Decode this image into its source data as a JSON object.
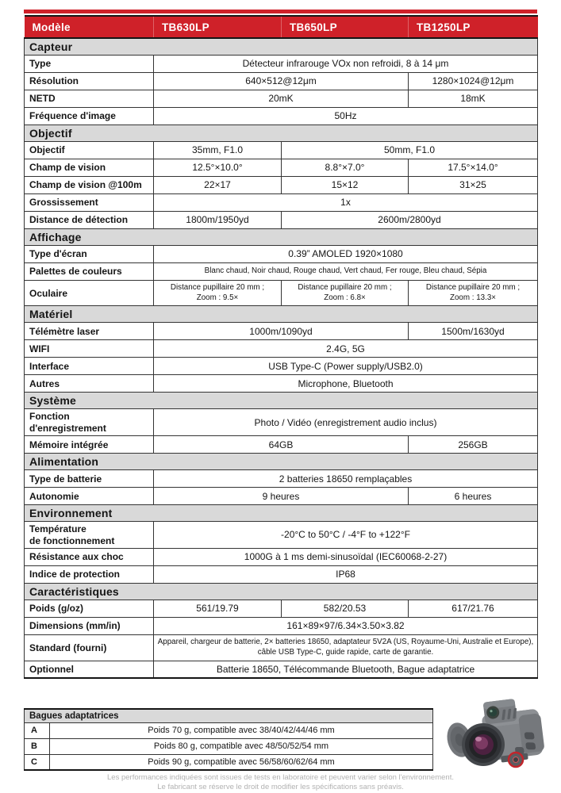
{
  "page": {
    "accent_color": "#cf2129",
    "section_bg": "#d9d9d9"
  },
  "header": {
    "label": "Modèle",
    "models": [
      "TB630LP",
      "TB650LP",
      "TB1250LP"
    ]
  },
  "sections": [
    {
      "title": "Capteur",
      "rows": [
        {
          "label": "Type",
          "cells": [
            {
              "text": "Détecteur infrarouge VOx non refroidi, 8 à 14 μm",
              "span": 3
            }
          ]
        },
        {
          "label": "Résolution",
          "cells": [
            {
              "text": "640×512@12μm",
              "span": 2
            },
            {
              "text": "1280×1024@12μm",
              "span": 1
            }
          ]
        },
        {
          "label": "NETD",
          "cells": [
            {
              "text": "20mK",
              "span": 2
            },
            {
              "text": "18mK",
              "span": 1
            }
          ]
        },
        {
          "label": "Fréquence d'image",
          "cells": [
            {
              "text": "50Hz",
              "span": 3
            }
          ]
        }
      ]
    },
    {
      "title": "Objectif",
      "rows": [
        {
          "label": "Objectif",
          "cells": [
            {
              "text": "35mm, F1.0",
              "span": 1
            },
            {
              "text": "50mm, F1.0",
              "span": 2
            }
          ]
        },
        {
          "label": "Champ de vision",
          "cells": [
            {
              "text": "12.5°×10.0°",
              "span": 1
            },
            {
              "text": "8.8°×7.0°",
              "span": 1
            },
            {
              "text": "17.5°×14.0°",
              "span": 1
            }
          ]
        },
        {
          "label": "Champ de vision @100m",
          "cells": [
            {
              "text": "22×17",
              "span": 1
            },
            {
              "text": "15×12",
              "span": 1
            },
            {
              "text": "31×25",
              "span": 1
            }
          ]
        },
        {
          "label": "Grossissement",
          "cells": [
            {
              "text": "1x",
              "span": 3
            }
          ]
        },
        {
          "label": "Distance de détection",
          "cells": [
            {
              "text": "1800m/1950yd",
              "span": 1
            },
            {
              "text": "2600m/2800yd",
              "span": 2
            }
          ]
        }
      ]
    },
    {
      "title": "Affichage",
      "rows": [
        {
          "label": "Type d'écran",
          "cells": [
            {
              "text": "0.39” AMOLED 1920×1080",
              "span": 3
            }
          ]
        },
        {
          "label": "Palettes de couleurs",
          "cells": [
            {
              "text": "Blanc chaud, Noir chaud, Rouge chaud, Vert chaud, Fer rouge, Bleu chaud, Sépia",
              "span": 3,
              "small": true
            }
          ]
        },
        {
          "label": "Oculaire",
          "cells": [
            {
              "text": "Distance pupillaire 20 mm ;\nZoom : 9.5×",
              "span": 1,
              "small": true
            },
            {
              "text": "Distance pupillaire 20 mm ;\nZoom : 6.8×",
              "span": 1,
              "small": true
            },
            {
              "text": "Distance pupillaire 20 mm ;\nZoom : 13.3×",
              "span": 1,
              "small": true
            }
          ]
        }
      ]
    },
    {
      "title": "Matériel",
      "rows": [
        {
          "label": "Télémètre laser",
          "cells": [
            {
              "text": "1000m/1090yd",
              "span": 2
            },
            {
              "text": "1500m/1630yd",
              "span": 1
            }
          ]
        },
        {
          "label": "WIFI",
          "cells": [
            {
              "text": "2.4G, 5G",
              "span": 3
            }
          ]
        },
        {
          "label": "Interface",
          "cells": [
            {
              "text": "USB Type-C (Power supply/USB2.0)",
              "span": 3
            }
          ]
        },
        {
          "label": "Autres",
          "cells": [
            {
              "text": "Microphone, Bluetooth",
              "span": 3
            }
          ]
        }
      ]
    },
    {
      "title": "Système",
      "rows": [
        {
          "label": "Fonction\nd'enregistrement",
          "cells": [
            {
              "text": "Photo / Vidéo (enregistrement audio inclus)",
              "span": 3
            }
          ]
        },
        {
          "label": "Mémoire intégrée",
          "cells": [
            {
              "text": "64GB",
              "span": 2
            },
            {
              "text": "256GB",
              "span": 1
            }
          ]
        }
      ]
    },
    {
      "title": "Alimentation",
      "rows": [
        {
          "label": "Type de batterie",
          "cells": [
            {
              "text": "2 batteries 18650 remplaçables",
              "span": 3
            }
          ]
        },
        {
          "label": "Autonomie",
          "cells": [
            {
              "text": "9 heures",
              "span": 2
            },
            {
              "text": "6 heures",
              "span": 1
            }
          ]
        }
      ]
    },
    {
      "title": "Environnement",
      "rows": [
        {
          "label": "Température\nde fonctionnement",
          "cells": [
            {
              "text": "-20°C to 50°C / -4°F to +122°F",
              "span": 3
            }
          ]
        },
        {
          "label": "Résistance aux choc",
          "cells": [
            {
              "text": "1000G à 1 ms demi-sinusoïdal (IEC60068-2-27)",
              "span": 3
            }
          ]
        },
        {
          "label": "Indice de protection",
          "cells": [
            {
              "text": "IP68",
              "span": 3
            }
          ]
        }
      ]
    },
    {
      "title": "Caractéristiques",
      "rows": [
        {
          "label": "Poids (g/oz)",
          "cells": [
            {
              "text": "561/19.79",
              "span": 1
            },
            {
              "text": "582/20.53",
              "span": 1
            },
            {
              "text": "617/21.76",
              "span": 1
            }
          ]
        },
        {
          "label": "Dimensions (mm/in)",
          "cells": [
            {
              "text": "161×89×97/6.34×3.50×3.82",
              "span": 3
            }
          ]
        },
        {
          "label": "Standard (fourni)",
          "cells": [
            {
              "text": "Appareil, chargeur de batterie, 2× batteries 18650, adaptateur 5V2A (US, Royaume-Uni, Australie et Europe), câble USB Type-C, guide rapide, carte de garantie.",
              "span": 3,
              "small": true
            }
          ]
        },
        {
          "label": "Optionnel",
          "cells": [
            {
              "text": "Batterie 18650, Télécommande Bluetooth, Bague adaptatrice",
              "span": 3
            }
          ]
        }
      ]
    }
  ],
  "adapter_rings": {
    "title": "Bagues adaptatrices",
    "rows": [
      {
        "key": "A",
        "text": "Poids 70 g, compatible avec 38/40/42/44/46 mm"
      },
      {
        "key": "B",
        "text": "Poids 80 g, compatible avec 48/50/52/54 mm"
      },
      {
        "key": "C",
        "text": "Poids 90 g, compatible avec 56/58/60/62/64 mm"
      }
    ]
  },
  "device": {
    "description": "thermal clip-on monocular with open lens cap"
  },
  "footer": {
    "line1": "Les performances indiquées sont issues de tests en laboratoire et peuvent varier selon l'environnement.",
    "line2": "Le fabricant se réserve le droit de modifier les spécifications sans préavis."
  }
}
